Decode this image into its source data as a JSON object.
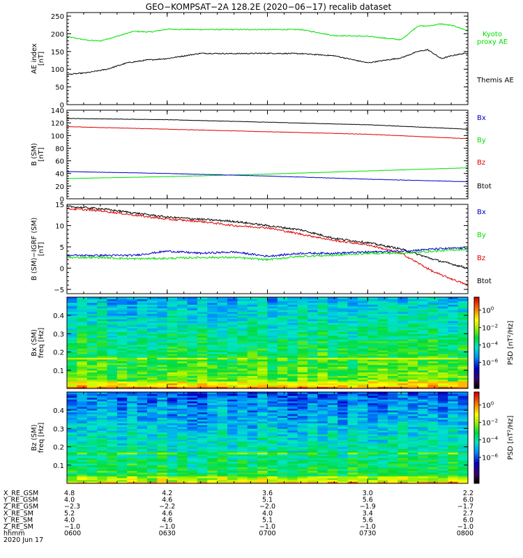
{
  "title": "GEO−KOMPSAT−2A 128.2E (2020−06−17) recalib dataset",
  "colors": {
    "black": "#000000",
    "green": "#00e000",
    "red": "#e00000",
    "blue": "#0000c8"
  },
  "time_axis": {
    "range": [
      "0600",
      "0800"
    ],
    "ticks": [
      "0600",
      "0630",
      "0700",
      "0730",
      "0800"
    ]
  },
  "chart_data": [
    {
      "type": "line",
      "id": "ae",
      "ylabel": [
        "AE index",
        "[nT]"
      ],
      "ylim": [
        0,
        260
      ],
      "yticks": [
        0,
        50,
        100,
        150,
        200,
        250
      ],
      "series": [
        {
          "name": "Kyoto",
          "name2": "proxy AE",
          "color": "green",
          "x": [
            "0600",
            "0606",
            "0610",
            "0615",
            "0620",
            "0625",
            "0630",
            "0640",
            "0650",
            "0700",
            "0710",
            "0720",
            "0730",
            "0740",
            "0745",
            "0748",
            "0752",
            "0756",
            "0800"
          ],
          "y": [
            192,
            182,
            180,
            193,
            207,
            205,
            213,
            212,
            212,
            212,
            212,
            195,
            193,
            183,
            222,
            222,
            228,
            222,
            208
          ]
        },
        {
          "name": "Themis AE",
          "color": "black",
          "x": [
            "0600",
            "0606",
            "0612",
            "0618",
            "0624",
            "0630",
            "0640",
            "0650",
            "0700",
            "0710",
            "0720",
            "0730",
            "0740",
            "0745",
            "0748",
            "0752",
            "0756",
            "0800"
          ],
          "y": [
            85,
            90,
            100,
            118,
            126,
            130,
            145,
            144,
            145,
            144,
            138,
            118,
            132,
            150,
            155,
            130,
            140,
            146
          ]
        }
      ]
    },
    {
      "type": "line",
      "id": "b",
      "ylabel": [
        "B (SM)",
        "[nT]"
      ],
      "ylim": [
        0,
        140
      ],
      "yticks": [
        0,
        20,
        40,
        60,
        80,
        100,
        120,
        140
      ],
      "series": [
        {
          "name": "Btot",
          "color": "black",
          "x": [
            "0600",
            "0630",
            "0700",
            "0730",
            "0800"
          ],
          "y": [
            127,
            125,
            121,
            117,
            110
          ]
        },
        {
          "name": "Bz",
          "color": "red",
          "x": [
            "0600",
            "0630",
            "0700",
            "0730",
            "0800"
          ],
          "y": [
            114,
            110,
            106,
            102,
            95
          ]
        },
        {
          "name": "By",
          "color": "green",
          "x": [
            "0600",
            "0630",
            "0700",
            "0730",
            "0800"
          ],
          "y": [
            32,
            35,
            39,
            44,
            49
          ]
        },
        {
          "name": "Bx",
          "color": "blue",
          "x": [
            "0600",
            "0630",
            "0700",
            "0730",
            "0800"
          ],
          "y": [
            43,
            40,
            36,
            31,
            27
          ]
        }
      ],
      "legend": [
        "Bx",
        "By",
        "Bz",
        "Btot"
      ]
    },
    {
      "type": "line",
      "id": "db",
      "ylabel": [
        "B (SM)−IGRF (SM)",
        "[nT]"
      ],
      "ylim": [
        -6,
        15
      ],
      "yticks": [
        -5,
        0,
        5,
        10,
        15
      ],
      "series": [
        {
          "name": "Btot",
          "color": "black",
          "x": [
            "0600",
            "0610",
            "0620",
            "0630",
            "0640",
            "0650",
            "0700",
            "0710",
            "0720",
            "0730",
            "0740",
            "0750",
            "0800"
          ],
          "y": [
            14.5,
            14,
            13,
            12,
            11.5,
            11,
            10,
            9,
            7,
            6,
            4.5,
            2,
            0
          ]
        },
        {
          "name": "Bz",
          "color": "red",
          "x": [
            "0600",
            "0610",
            "0620",
            "0630",
            "0640",
            "0650",
            "0700",
            "0710",
            "0720",
            "0730",
            "0740",
            "0750",
            "0800"
          ],
          "y": [
            14,
            13.5,
            12.5,
            11.5,
            11,
            10,
            9.5,
            8,
            6.5,
            5.5,
            3.5,
            -1,
            -4
          ]
        },
        {
          "name": "By",
          "color": "green",
          "x": [
            "0600",
            "0610",
            "0620",
            "0630",
            "0640",
            "0650",
            "0700",
            "0710",
            "0720",
            "0730",
            "0740",
            "0750",
            "0800"
          ],
          "y": [
            2.5,
            2.5,
            2.2,
            2.3,
            2.5,
            2.5,
            2,
            2.8,
            3,
            3.5,
            3.5,
            4,
            4.5
          ]
        },
        {
          "name": "Bx",
          "color": "blue",
          "x": [
            "0600",
            "0610",
            "0620",
            "0630",
            "0640",
            "0650",
            "0700",
            "0710",
            "0720",
            "0730",
            "0740",
            "0750",
            "0800"
          ],
          "y": [
            3,
            3,
            3,
            4,
            3.5,
            3.8,
            2.8,
            3.5,
            3.5,
            3.8,
            4,
            4.5,
            4.8
          ]
        }
      ],
      "legend": [
        "Bx",
        "By",
        "Bz",
        "Btot"
      ]
    },
    {
      "type": "heatmap",
      "id": "bx_spec",
      "ylabel": [
        "Bx (SM)",
        "freq [Hz]"
      ],
      "ylim": [
        0,
        0.5
      ],
      "yticks": [
        0.1,
        0.2,
        0.3,
        0.4
      ],
      "colorbar": {
        "label": "PSD [nT²/Hz]",
        "ticks": [
          0,
          -2,
          -4,
          -6
        ]
      }
    },
    {
      "type": "heatmap",
      "id": "bz_spec",
      "ylabel": [
        "Bz (SM)",
        "freq [Hz]"
      ],
      "ylim": [
        0,
        0.5
      ],
      "yticks": [
        0.1,
        0.2,
        0.3,
        0.4
      ],
      "colorbar": {
        "label": "PSD [nT²/Hz]",
        "ticks": [
          0,
          -2,
          -4,
          -6
        ]
      }
    }
  ],
  "ephemeris": {
    "rows": [
      {
        "label": "X_RE_GSM",
        "values": [
          "4.8",
          "4.2",
          "3.6",
          "3.0",
          "2.2"
        ]
      },
      {
        "label": "Y_RE_GSM",
        "values": [
          "4.0",
          "4.6",
          "5.1",
          "5.6",
          "6.0"
        ]
      },
      {
        "label": "Z_RE_GSM",
        "values": [
          "−2.3",
          "−2.2",
          "−2.0",
          "−1.9",
          "−1.7"
        ]
      },
      {
        "label": "X_RE_SM",
        "values": [
          "5.2",
          "4.6",
          "4.0",
          "3.4",
          "2.7"
        ]
      },
      {
        "label": "Y_RE_SM",
        "values": [
          "4.0",
          "4.6",
          "5.1",
          "5.6",
          "6.0"
        ]
      },
      {
        "label": "Z_RE_SM",
        "values": [
          "−1.0",
          "−1.0",
          "−1.0",
          "−1.0",
          "−1.0"
        ]
      },
      {
        "label": "hhmm",
        "values": [
          "0600",
          "0630",
          "0700",
          "0730",
          "0800"
        ]
      }
    ],
    "date": "2020 Jun 17"
  }
}
